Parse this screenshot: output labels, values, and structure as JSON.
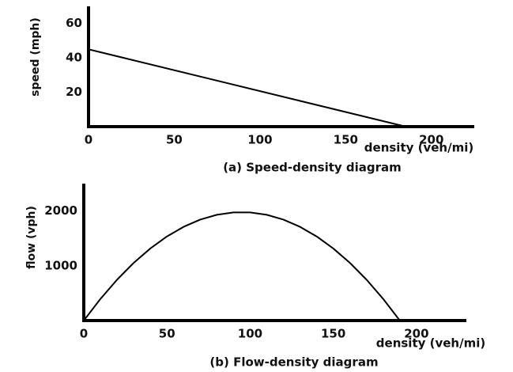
{
  "chart_data": [
    {
      "type": "line",
      "caption": "(a) Speed-density diagram",
      "x_label": "density (veh/mi)",
      "y_label": "speed (mph)",
      "x": [
        0,
        185
      ],
      "series": [
        {
          "name": "speed",
          "color": "#000000",
          "values": [
            45,
            0
          ]
        }
      ],
      "xlim": [
        0,
        225
      ],
      "xticks": [
        0,
        50,
        100,
        150,
        200
      ],
      "ylim": [
        0,
        70
      ],
      "yticks": [
        20,
        40,
        60
      ],
      "grid": false
    },
    {
      "type": "line",
      "caption": "(b) Flow-density diagram",
      "x_label": "density (veh/mi)",
      "y_label": "flow (vph)",
      "x": [
        0,
        10,
        20,
        30,
        40,
        50,
        60,
        70,
        80,
        90,
        100,
        110,
        120,
        130,
        140,
        150,
        160,
        170,
        180,
        190
      ],
      "series": [
        {
          "name": "flow",
          "color": "#000000",
          "values": [
            0,
            395,
            746,
            1053,
            1316,
            1536,
            1711,
            1843,
            1931,
            1975,
            1975,
            1931,
            1843,
            1711,
            1536,
            1316,
            1053,
            746,
            395,
            0
          ]
        }
      ],
      "xlim": [
        0,
        230
      ],
      "xticks": [
        0,
        50,
        100,
        150,
        200
      ],
      "ylim": [
        0,
        2500
      ],
      "yticks": [
        1000,
        2000
      ],
      "grid": false
    }
  ]
}
